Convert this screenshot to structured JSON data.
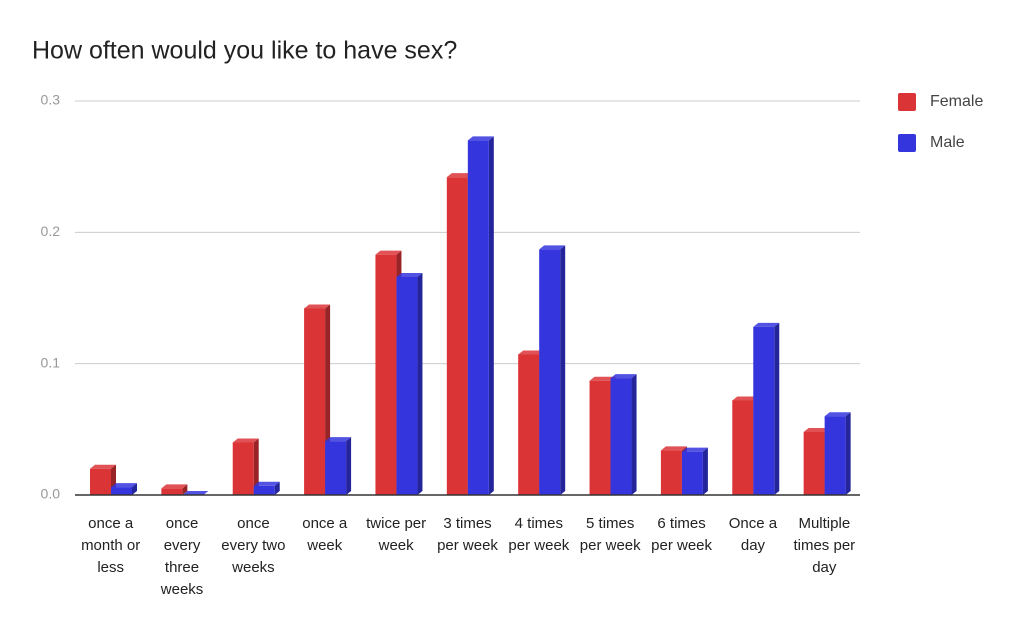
{
  "chart_data": {
    "type": "bar",
    "title": "How often would you like to have sex?",
    "categories": [
      "once a month or less",
      "once every three weeks",
      "once every two weeks",
      "once a week",
      "twice per week",
      "3 times per week",
      "4 times per week",
      "5 times per week",
      "6 times per week",
      "Once a day",
      "Multiple times per day"
    ],
    "series": [
      {
        "name": "Female",
        "color": "#db3437",
        "values": [
          0.02,
          0.005,
          0.04,
          0.142,
          0.183,
          0.242,
          0.107,
          0.087,
          0.034,
          0.072,
          0.048
        ]
      },
      {
        "name": "Male",
        "color": "#3535de",
        "values": [
          0.006,
          0.0,
          0.007,
          0.041,
          0.166,
          0.27,
          0.187,
          0.089,
          0.033,
          0.128,
          0.06
        ]
      }
    ],
    "ylim": [
      0,
      0.3
    ],
    "yticks": [
      {
        "value": 0,
        "label": "0.0"
      },
      0.1,
      0.2,
      0.3
    ],
    "grid": true,
    "legend": "right"
  }
}
